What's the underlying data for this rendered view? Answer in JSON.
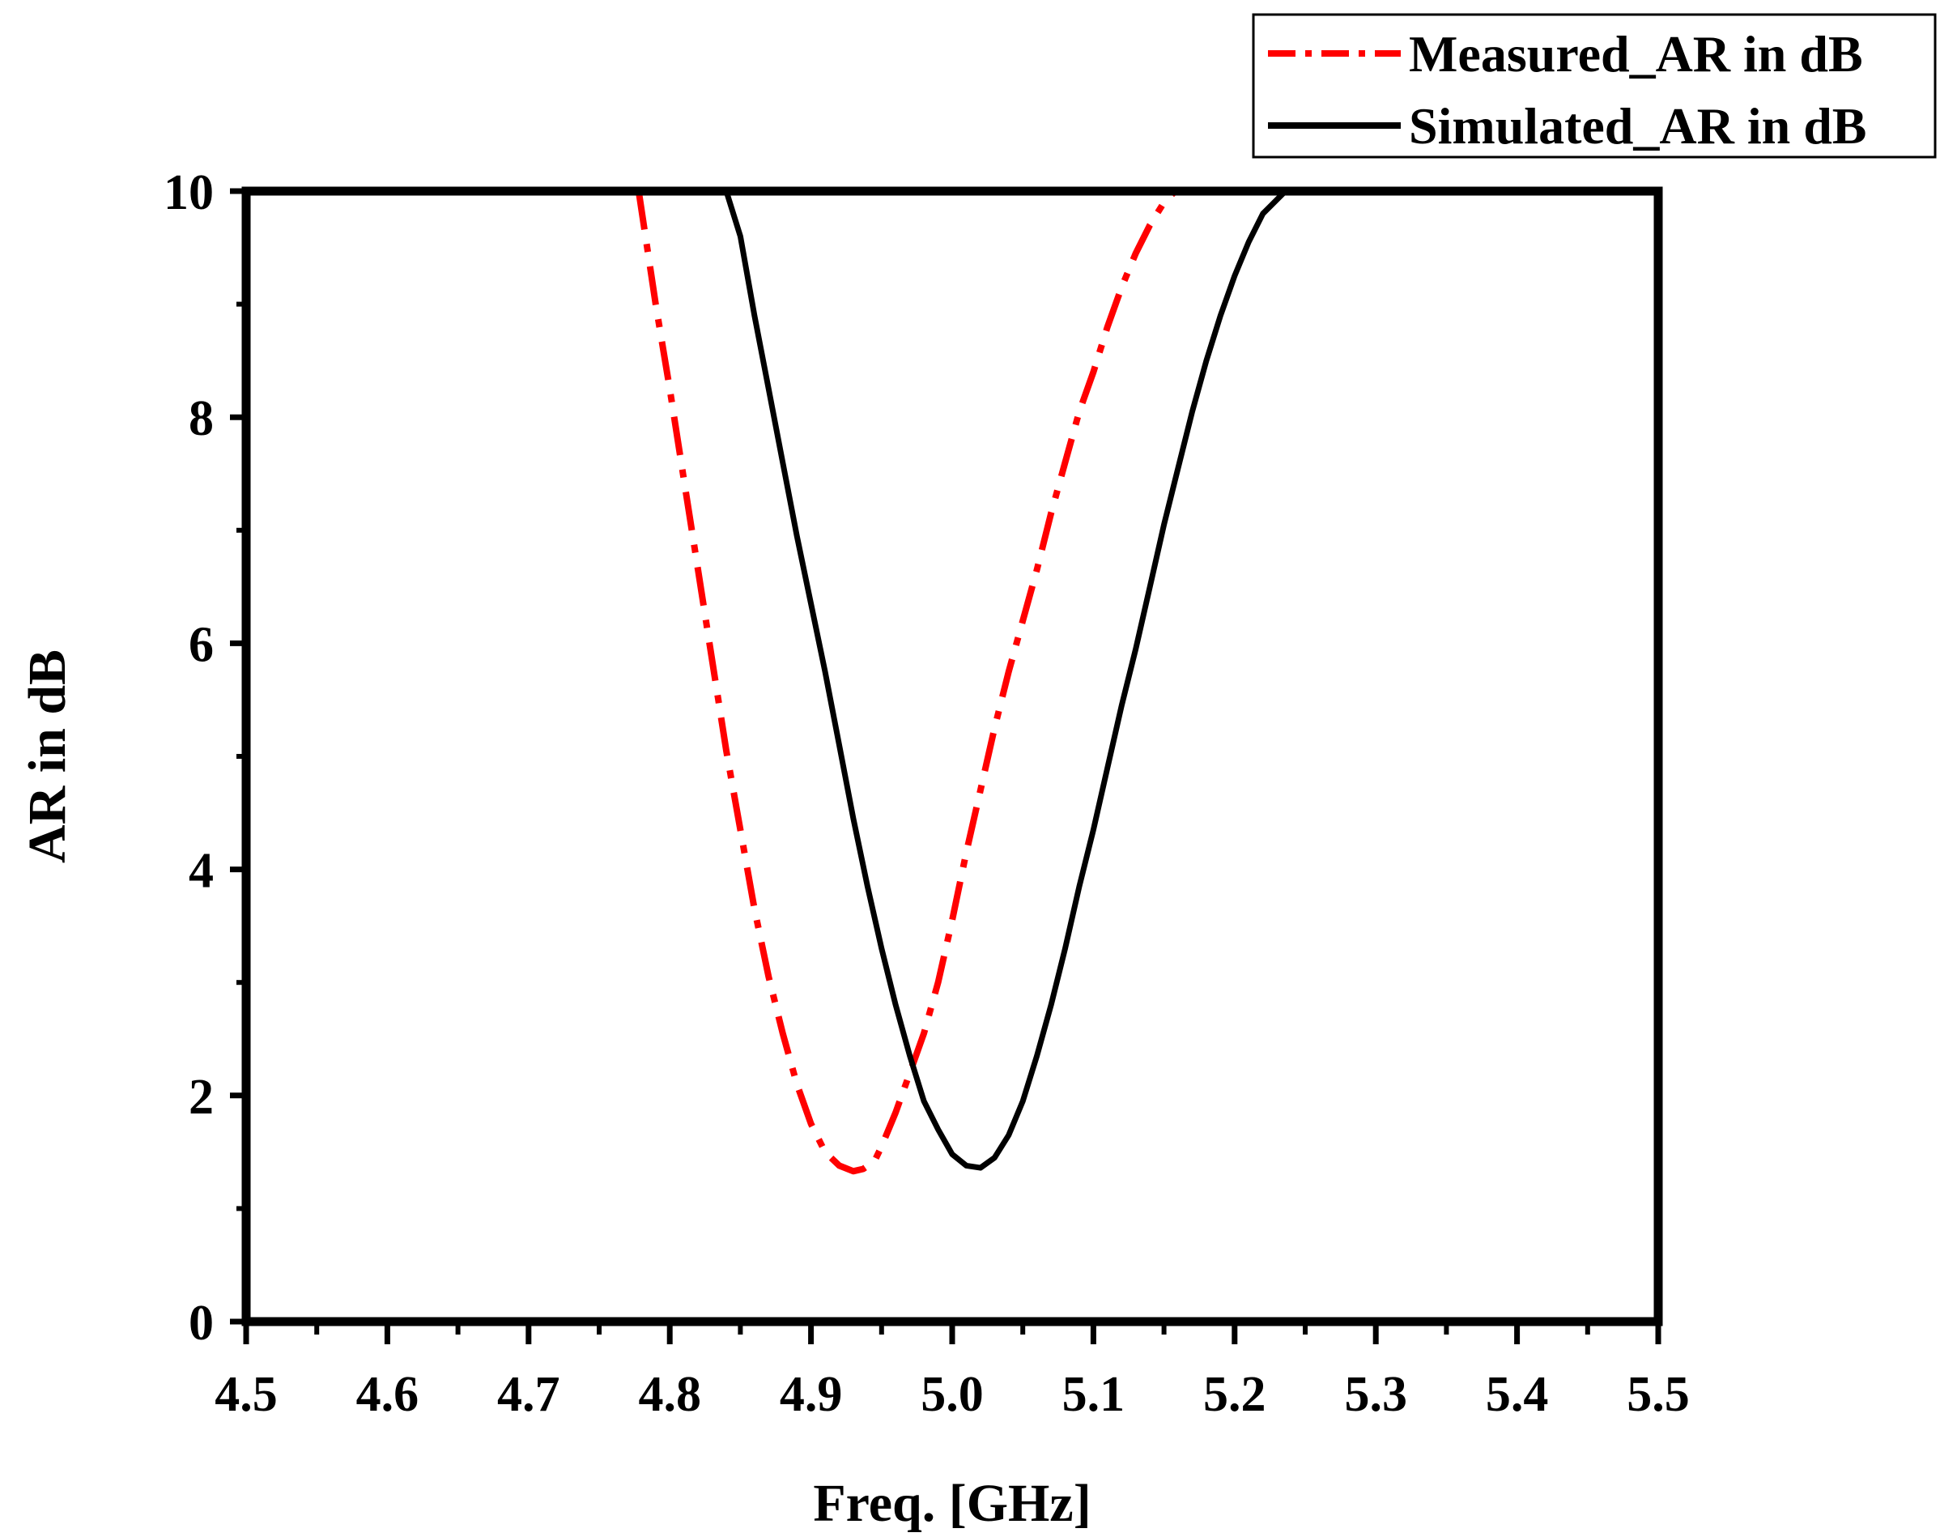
{
  "chart_data": {
    "type": "line",
    "title": "",
    "xlabel": "Freq. [GHz]",
    "ylabel": "AR in dB",
    "xlim": [
      4.5,
      5.5
    ],
    "ylim": [
      0,
      10
    ],
    "x_major_ticks": [
      4.5,
      4.6,
      4.7,
      4.8,
      4.9,
      5.0,
      5.1,
      5.2,
      5.3,
      5.4,
      5.5
    ],
    "x_tick_labels": [
      "4.5",
      "4.6",
      "4.7",
      "4.8",
      "4.9",
      "5.0",
      "5.1",
      "5.2",
      "5.3",
      "5.4",
      "5.5"
    ],
    "y_major_ticks": [
      0,
      2,
      4,
      6,
      8,
      10
    ],
    "y_tick_labels": [
      "0",
      "2",
      "4",
      "6",
      "8",
      "10"
    ],
    "grid": false,
    "legend_position": "top-right (outside plot)",
    "series": [
      {
        "name": "Measured_AR in dB",
        "color": "#ff0000",
        "style": "dash-dot",
        "x": [
          4.778,
          4.79,
          4.8,
          4.81,
          4.82,
          4.83,
          4.84,
          4.85,
          4.86,
          4.87,
          4.88,
          4.89,
          4.9,
          4.91,
          4.92,
          4.93,
          4.937,
          4.945,
          4.95,
          4.96,
          4.97,
          4.98,
          4.99,
          5.0,
          5.01,
          5.02,
          5.03,
          5.04,
          5.05,
          5.06,
          5.07,
          5.08,
          5.09,
          5.1,
          5.11,
          5.12,
          5.13,
          5.14,
          5.15,
          5.158
        ],
        "y": [
          10.0,
          9.0,
          8.25,
          7.45,
          6.65,
          5.85,
          5.05,
          4.35,
          3.65,
          3.05,
          2.55,
          2.1,
          1.75,
          1.5,
          1.38,
          1.33,
          1.35,
          1.42,
          1.55,
          1.85,
          2.2,
          2.55,
          3.0,
          3.55,
          4.15,
          4.7,
          5.25,
          5.75,
          6.2,
          6.65,
          7.15,
          7.6,
          8.05,
          8.4,
          8.8,
          9.15,
          9.45,
          9.7,
          9.9,
          10.0
        ]
      },
      {
        "name": "Simulated_AR in dB",
        "color": "#000000",
        "style": "solid",
        "x": [
          4.84,
          4.85,
          4.86,
          4.87,
          4.88,
          4.89,
          4.9,
          4.91,
          4.92,
          4.93,
          4.94,
          4.95,
          4.96,
          4.97,
          4.98,
          4.99,
          5.0,
          5.01,
          5.02,
          5.03,
          5.04,
          5.05,
          5.06,
          5.07,
          5.08,
          5.09,
          5.1,
          5.11,
          5.12,
          5.13,
          5.14,
          5.15,
          5.16,
          5.17,
          5.18,
          5.19,
          5.2,
          5.21,
          5.22,
          5.236
        ],
        "y": [
          10.0,
          9.6,
          8.9,
          8.25,
          7.6,
          6.95,
          6.35,
          5.75,
          5.1,
          4.45,
          3.85,
          3.3,
          2.8,
          2.35,
          1.95,
          1.7,
          1.48,
          1.38,
          1.36,
          1.45,
          1.65,
          1.95,
          2.35,
          2.8,
          3.3,
          3.85,
          4.35,
          4.9,
          5.45,
          5.95,
          6.5,
          7.05,
          7.55,
          8.05,
          8.5,
          8.9,
          9.25,
          9.55,
          9.8,
          10.0
        ]
      }
    ]
  }
}
